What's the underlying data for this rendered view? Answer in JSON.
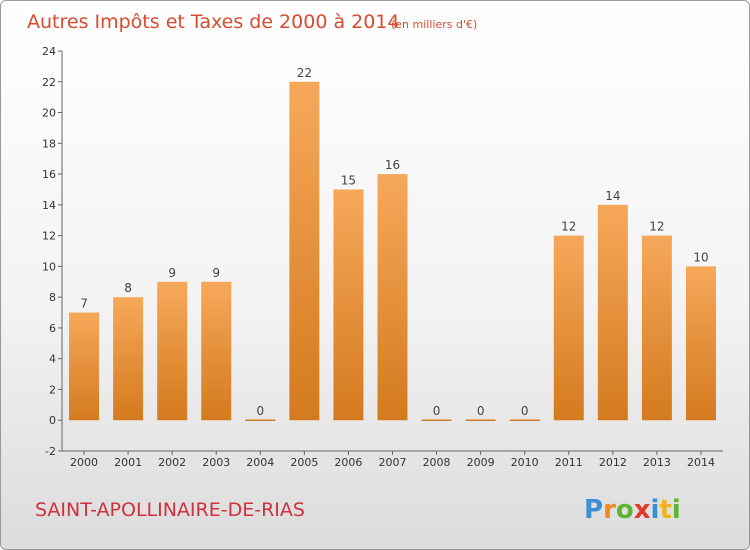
{
  "chart_data": {
    "type": "bar",
    "title": "Autres Impôts et Taxes de 2000 à 2014",
    "subtitle": "(en milliers d'€)",
    "categories": [
      "2000",
      "2001",
      "2002",
      "2003",
      "2004",
      "2005",
      "2006",
      "2007",
      "2008",
      "2009",
      "2010",
      "2011",
      "2012",
      "2013",
      "2014"
    ],
    "values": [
      7,
      8,
      9,
      9,
      0,
      22,
      15,
      16,
      0,
      0,
      0,
      12,
      14,
      12,
      10
    ],
    "ylim": [
      -2,
      24
    ],
    "yticks": [
      -2,
      0,
      2,
      4,
      6,
      8,
      10,
      12,
      14,
      16,
      18,
      20,
      22,
      24
    ],
    "grid": false,
    "bar_color_light": "#f6a85a",
    "bar_color_dark": "#d47a1e"
  },
  "place_name": "SAINT-APOLLINAIRE-DE-RIAS",
  "logo": {
    "letters": [
      "P",
      "r",
      "o",
      "x",
      "i",
      "t",
      "i"
    ],
    "colors": [
      "#3a8fd6",
      "#f08c1e",
      "#5cb531",
      "#e23a2a",
      "#3a8fd6",
      "#f0b41e",
      "#5cb531"
    ]
  }
}
